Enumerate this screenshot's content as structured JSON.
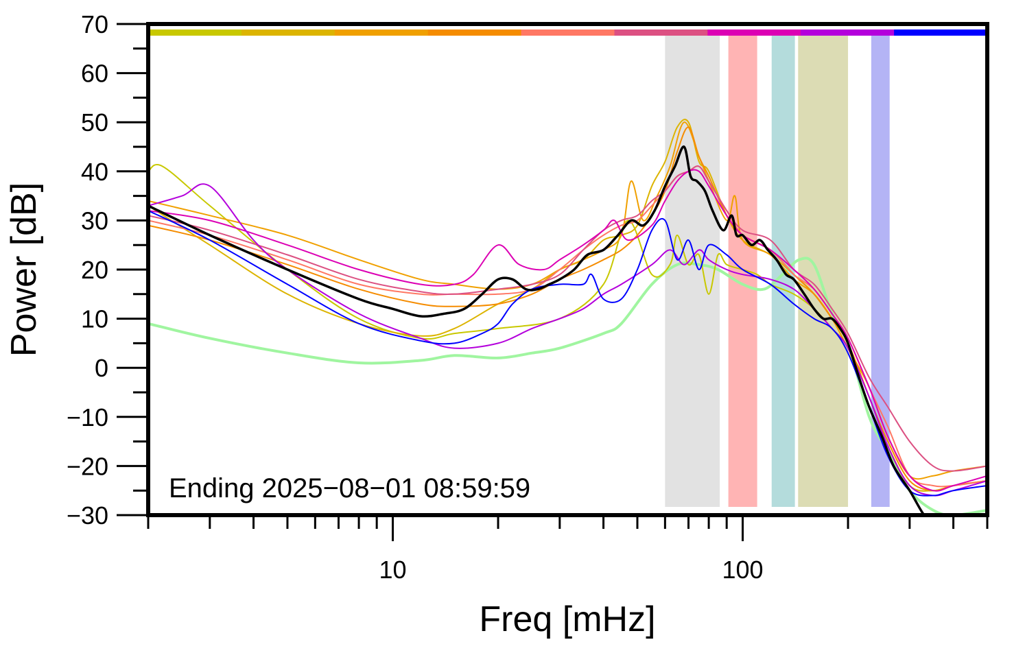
{
  "chart_data": {
    "type": "line",
    "xlabel": "Freq [mHz]",
    "ylabel": "Power [dB]",
    "xscale": "log",
    "xlim": [
      2,
      500
    ],
    "ylim": [
      -30,
      70
    ],
    "grid": false,
    "legend": "none",
    "annotation": "Ending 2025−08−01 08:59:59",
    "x_ticks": [
      10,
      100
    ],
    "x_tick_labels": [
      "10",
      "100"
    ],
    "y_ticks": [
      -30,
      -20,
      -10,
      0,
      10,
      20,
      30,
      40,
      50,
      60,
      70
    ],
    "y_tick_labels": [
      "−30",
      "−20",
      "−10",
      "0",
      "10",
      "20",
      "30",
      "40",
      "50",
      "60",
      "70"
    ],
    "top_bar_colors": [
      "#c8c800",
      "#dcb400",
      "#f0a000",
      "#f58c00",
      "#ff7864",
      "#dc5082",
      "#dc00b4",
      "#b400dc",
      "#0000ff"
    ],
    "bands": [
      {
        "x0": 60,
        "x1": 86,
        "color": "#e2e2e2"
      },
      {
        "x0": 91,
        "x1": 110,
        "color": "#ffb4b4"
      },
      {
        "x0": 121,
        "x1": 141,
        "color": "#b4dcdc"
      },
      {
        "x0": 144,
        "x1": 200,
        "color": "#dcdcb4"
      },
      {
        "x0": 233,
        "x1": 263,
        "color": "#b4b4f5"
      }
    ],
    "series": [
      {
        "color": "#a0f5a0",
        "width": 4,
        "x": [
          2,
          3,
          5,
          8,
          12,
          15,
          20,
          25,
          30,
          40,
          45,
          55,
          65,
          75,
          85,
          100,
          115,
          130,
          145,
          160,
          180,
          200,
          230,
          260,
          300,
          350,
          400,
          500
        ],
        "y": [
          9,
          6,
          3,
          1,
          1.5,
          2.5,
          2,
          3,
          4,
          7,
          9,
          17,
          21,
          21,
          20,
          17,
          16,
          19,
          22,
          21,
          11,
          5,
          -10,
          -17,
          -25,
          -29,
          -30,
          -29
        ]
      },
      {
        "color": "#c8c800",
        "width": 2,
        "x": [
          2,
          2.2,
          3,
          5,
          8,
          12,
          15,
          20,
          30,
          40,
          47,
          55,
          62,
          65,
          70,
          75,
          80,
          85,
          90,
          100,
          110,
          120,
          140,
          160,
          180,
          200,
          230,
          260,
          300,
          350,
          400,
          500
        ],
        "y": [
          40,
          41,
          33,
          20,
          10,
          6,
          7,
          8,
          10,
          17,
          30,
          19,
          21,
          27,
          21,
          23,
          15,
          23,
          21,
          20,
          19,
          17,
          15,
          12,
          8,
          4,
          -8,
          -16,
          -24,
          -25,
          -24,
          -23
        ]
      },
      {
        "color": "#dcb400",
        "width": 2,
        "x": [
          2,
          3,
          5,
          8,
          12,
          15,
          20,
          25,
          30,
          35,
          40,
          45,
          50,
          55,
          60,
          65,
          70,
          75,
          80,
          90,
          100,
          120,
          140,
          160,
          180,
          200,
          230,
          260,
          300,
          350,
          400,
          500
        ],
        "y": [
          33,
          25,
          15,
          9,
          6.5,
          8,
          13,
          16,
          20,
          22,
          26,
          27,
          29,
          37,
          42,
          49,
          50,
          42,
          40,
          31,
          26,
          23,
          19,
          15,
          10,
          5,
          -6,
          -16,
          -24,
          -25,
          -24,
          -23
        ]
      },
      {
        "color": "#f0a000",
        "width": 2,
        "x": [
          2,
          3,
          5,
          8,
          12,
          15,
          20,
          25,
          30,
          35,
          40,
          45,
          48,
          52,
          57,
          62,
          68,
          75,
          80,
          90,
          95,
          100,
          120,
          140,
          160,
          180,
          200,
          230,
          260,
          300,
          350,
          400,
          500
        ],
        "y": [
          34,
          31,
          27,
          22,
          18,
          17,
          16,
          17,
          20,
          22,
          24,
          27,
          38,
          30,
          35,
          41,
          50,
          43,
          38,
          30,
          35,
          26,
          23,
          18,
          15,
          10,
          4,
          -4,
          -14,
          -22,
          -22,
          -21,
          -20
        ]
      },
      {
        "color": "#f58c00",
        "width": 2,
        "x": [
          2,
          3,
          5,
          8,
          12,
          15,
          20,
          25,
          30,
          35,
          40,
          45,
          50,
          55,
          60,
          65,
          70,
          75,
          80,
          90,
          100,
          120,
          140,
          160,
          180,
          200,
          230,
          260,
          300,
          350,
          400,
          500
        ],
        "y": [
          29,
          26,
          21,
          16,
          13,
          12.5,
          13,
          15,
          18,
          20,
          22,
          24,
          27,
          31,
          36,
          44,
          49,
          43,
          39,
          31,
          27,
          24,
          19,
          15,
          10,
          5,
          -6,
          -15,
          -23,
          -25,
          -24,
          -23
        ]
      },
      {
        "color": "#ff7864",
        "width": 2,
        "x": [
          2,
          3,
          5,
          8,
          12,
          15,
          20,
          25,
          30,
          35,
          40,
          45,
          50,
          55,
          60,
          65,
          70,
          75,
          80,
          90,
          100,
          120,
          140,
          160,
          180,
          200,
          230,
          260,
          300,
          350,
          400,
          500
        ],
        "y": [
          30,
          27,
          22,
          17,
          15,
          15,
          15,
          16,
          20,
          24,
          27,
          29,
          30,
          33,
          36,
          39,
          40,
          41,
          38,
          32,
          27,
          24,
          19,
          16,
          11,
          6,
          -4,
          -12,
          -22,
          -24,
          -24,
          -23
        ]
      },
      {
        "color": "#dc5082",
        "width": 2,
        "x": [
          2,
          3,
          5,
          8,
          12,
          15,
          20,
          25,
          30,
          35,
          40,
          45,
          50,
          55,
          60,
          65,
          70,
          75,
          80,
          90,
          100,
          120,
          140,
          160,
          180,
          200,
          230,
          260,
          300,
          350,
          400,
          500
        ],
        "y": [
          31,
          28,
          23,
          18,
          15.5,
          15,
          16,
          17,
          19,
          24,
          28,
          30,
          31,
          34,
          36,
          39,
          40,
          41,
          38,
          32,
          28,
          26,
          20,
          17,
          12,
          7,
          -2,
          -8,
          -15,
          -20,
          -21,
          -20
        ]
      },
      {
        "color": "#dc00b4",
        "width": 2,
        "x": [
          2,
          3,
          5,
          8,
          12,
          15,
          17,
          20,
          23,
          27,
          30,
          35,
          40,
          43,
          47,
          55,
          60,
          65,
          70,
          75,
          80,
          90,
          100,
          120,
          140,
          160,
          180,
          200,
          230,
          260,
          300,
          350,
          400,
          500
        ],
        "y": [
          32,
          30,
          25,
          20,
          17,
          17,
          19,
          25,
          21,
          20,
          22,
          25,
          28,
          30,
          26,
          29,
          34,
          38,
          40,
          40,
          37,
          31,
          27,
          24,
          20,
          16,
          11,
          6,
          -4,
          -14,
          -22,
          -25,
          -24,
          -22
        ]
      },
      {
        "color": "#b400dc",
        "width": 2,
        "x": [
          2,
          2.5,
          3,
          4,
          5,
          8,
          12,
          15,
          20,
          25,
          30,
          35,
          40,
          45,
          55,
          62,
          68,
          75,
          80,
          90,
          100,
          120,
          140,
          160,
          180,
          200,
          230,
          260,
          300,
          350,
          400,
          500
        ],
        "y": [
          33,
          35,
          37,
          26,
          20,
          11,
          6,
          4,
          5,
          8,
          10,
          12,
          15,
          17,
          21,
          24,
          21,
          24,
          22,
          20,
          19,
          18,
          16,
          12,
          8,
          4,
          -6,
          -16,
          -24,
          -26,
          -25,
          -23
        ]
      },
      {
        "color": "#0000ff",
        "width": 2,
        "x": [
          2,
          3,
          5,
          8,
          12,
          15,
          18,
          20,
          22,
          25,
          30,
          35,
          37,
          40,
          45,
          50,
          55,
          60,
          65,
          70,
          75,
          80,
          90,
          100,
          120,
          140,
          160,
          180,
          200,
          230,
          260,
          300,
          350,
          400,
          500
        ],
        "y": [
          32,
          26,
          17,
          9,
          5.5,
          5,
          7,
          9,
          13,
          16,
          17,
          17,
          19,
          14,
          14,
          20,
          28,
          30,
          22,
          26,
          20,
          25,
          23,
          20,
          17,
          13,
          10,
          8,
          3,
          -8,
          -18,
          -25,
          -26,
          -25,
          -24
        ]
      },
      {
        "color": "#000000",
        "width": 3.5,
        "x": [
          2,
          3,
          5,
          8,
          10,
          12,
          14,
          16,
          18,
          20,
          22,
          24,
          26,
          28,
          30,
          33,
          36,
          40,
          44,
          48,
          52,
          56,
          60,
          64,
          68,
          71,
          74,
          78,
          82,
          88,
          93,
          96,
          100,
          106,
          112,
          118,
          125,
          133,
          140,
          150,
          160,
          170,
          180,
          190,
          200,
          215,
          230,
          250,
          270,
          300,
          330,
          350
        ],
        "y": [
          33,
          27,
          20,
          14,
          12,
          10.5,
          11,
          12,
          15,
          18,
          18,
          16,
          16,
          17,
          18,
          20,
          23,
          24,
          27,
          30,
          29,
          32,
          37,
          41,
          45,
          39,
          38,
          36,
          32,
          28,
          31,
          27,
          27,
          25,
          26,
          24,
          22,
          19,
          18,
          15,
          12,
          10,
          10,
          8,
          5,
          -2,
          -8,
          -14,
          -20,
          -25,
          -30,
          -31
        ]
      }
    ]
  }
}
